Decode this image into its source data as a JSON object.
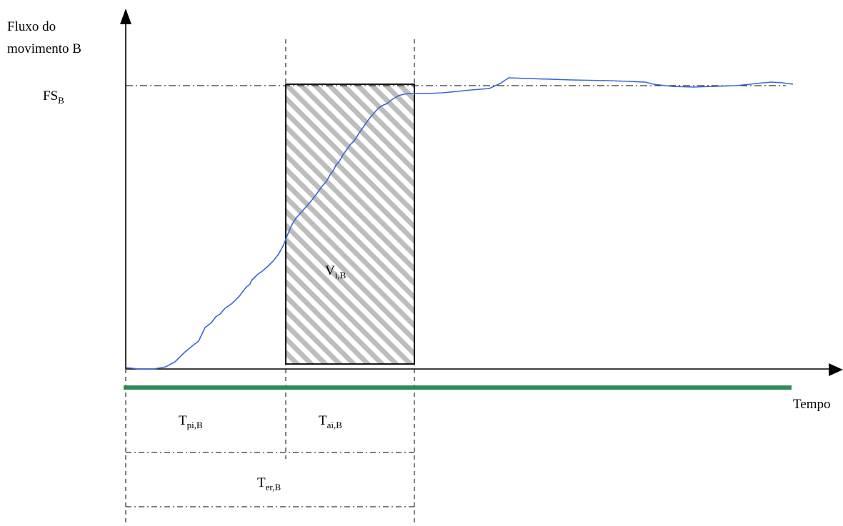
{
  "labels": {
    "y_axis_line1": "Fluxo do",
    "y_axis_line2": "movimento B",
    "x_axis": "Tempo",
    "fs_main": "FS",
    "fs_sub": "B",
    "v_main": "V",
    "v_sub": "i,B",
    "tpi_main": "T",
    "tpi_sub": "pi,B",
    "tai_main": "T",
    "tai_sub": "ai,B",
    "ter_main": "T",
    "ter_sub": "er,B"
  },
  "colors": {
    "curve": "#3a66d8",
    "green_bar": "#2e8b57",
    "hatch": "#bdbdbd",
    "axis": "#000000"
  }
}
